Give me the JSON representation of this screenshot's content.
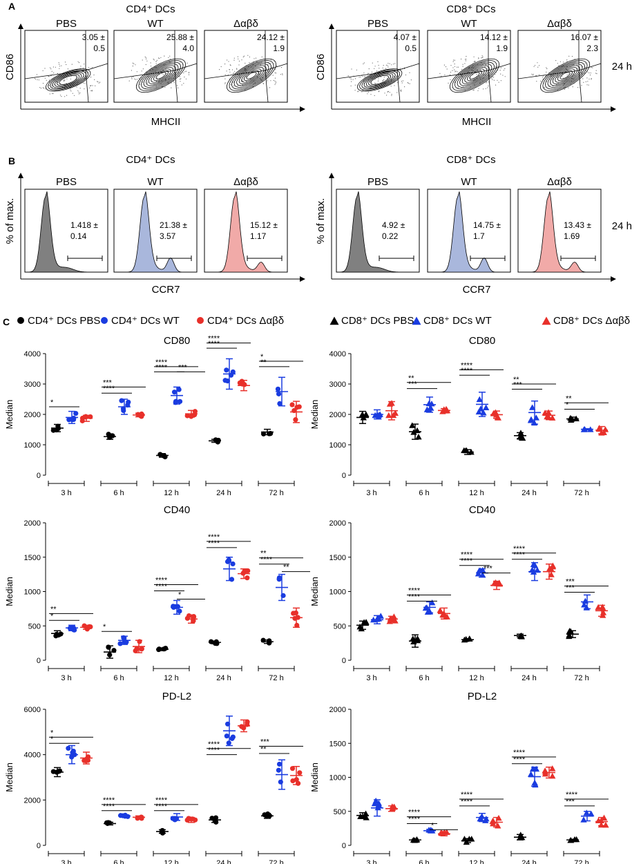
{
  "figure": {
    "panel_labels": [
      "A",
      "B",
      "C"
    ],
    "timepoint": "24 h",
    "groups": [
      "PBS",
      "WT",
      "Δαβδ"
    ],
    "group_colors": [
      "#000000",
      "#1a3ce0",
      "#e8302a"
    ],
    "fill_colors": [
      "#808080",
      "#a9b7dc",
      "#f1aaa8"
    ]
  },
  "panel_a": [
    {
      "title": "CD4⁺ DCs",
      "ylabel": "CD86",
      "xlabel": "MHCII",
      "stats": [
        [
          "3.05 ±",
          "0.5"
        ],
        [
          "25.88 ±",
          "4.0"
        ],
        [
          "24.12 ±",
          "1.9"
        ]
      ]
    },
    {
      "title": "CD8⁺ DCs",
      "ylabel": "CD86",
      "xlabel": "MHCII",
      "stats": [
        [
          "4.07 ±",
          "0.5"
        ],
        [
          "14.12 ±",
          "1.9"
        ],
        [
          "16.07 ±",
          "2.3"
        ]
      ]
    }
  ],
  "panel_b": [
    {
      "title": "CD4⁺ DCs",
      "ylabel": "% of max.",
      "xlabel": "CCR7",
      "stats": [
        [
          "1.418 ±",
          "0.14"
        ],
        [
          "21.38 ±",
          "3.57"
        ],
        [
          "15.12 ±",
          "1.17"
        ]
      ]
    },
    {
      "title": "CD8⁺ DCs",
      "ylabel": "% of max.",
      "xlabel": "CCR7",
      "stats": [
        [
          "4.92 ±",
          "0.22"
        ],
        [
          "14.75 ±",
          "1.7"
        ],
        [
          "13.43 ±",
          "1.69"
        ]
      ]
    }
  ],
  "legend_c": {
    "left": [
      "CD4⁺ DCs PBS",
      "CD4⁺ DCs WT",
      "CD4⁺ DCs Δαβδ"
    ],
    "right": [
      "CD8⁺ DCs PBS",
      "CD8⁺ DCs WT",
      "CD8⁺ DCs Δαβδ"
    ]
  },
  "chart_data": [
    {
      "type": "scatter",
      "title": "CD80",
      "ylabel": "Median",
      "marker": "circle",
      "ylim": [
        0,
        4000
      ],
      "yticks": [
        0,
        1000,
        2000,
        3000,
        4000
      ],
      "categories": [
        "3 h",
        "6 h",
        "12 h",
        "24 h",
        "72 h"
      ],
      "means": [
        [
          1550,
          1270,
          650,
          1130,
          1420
        ],
        [
          1900,
          2250,
          2620,
          3330,
          2750
        ],
        [
          1870,
          1980,
          2020,
          2950,
          2080
        ]
      ],
      "sds": [
        [
          120,
          90,
          60,
          50,
          90
        ],
        [
          200,
          250,
          280,
          500,
          470
        ],
        [
          100,
          60,
          110,
          170,
          350
        ]
      ],
      "sig": [
        {
          "labels": [
            "*"
          ],
          "tops": [
            2250
          ]
        },
        {
          "labels": [
            "***",
            "****"
          ],
          "tops": [
            2900,
            2700
          ]
        },
        {
          "labels": [
            "****",
            "****",
            "***"
          ],
          "tops": [
            3570,
            3400,
            3400
          ]
        },
        {
          "labels": [
            "****",
            "****"
          ],
          "tops": [
            4350,
            4180
          ]
        },
        {
          "labels": [
            "*",
            "**"
          ],
          "tops": [
            3750,
            3570
          ]
        }
      ]
    },
    {
      "type": "scatter",
      "title": "CD80",
      "ylabel": "Median",
      "marker": "triangle",
      "ylim": [
        0,
        4000
      ],
      "yticks": [
        0,
        1000,
        2000,
        3000,
        4000
      ],
      "categories": [
        "3 h",
        "6 h",
        "12 h",
        "24 h",
        "72 h"
      ],
      "means": [
        [
          1900,
          1430,
          760,
          1300,
          1850
        ],
        [
          2000,
          2320,
          2330,
          2060,
          1510
        ],
        [
          2120,
          2130,
          1990,
          1970,
          1480
        ]
      ],
      "sds": [
        [
          200,
          250,
          80,
          100,
          60
        ],
        [
          150,
          250,
          400,
          380,
          20
        ],
        [
          300,
          60,
          120,
          140,
          120
        ]
      ],
      "sig": [
        {
          "labels": [],
          "tops": []
        },
        {
          "labels": [
            "**",
            "***"
          ],
          "tops": [
            3050,
            2850
          ]
        },
        {
          "labels": [
            "****",
            "****"
          ],
          "tops": [
            3470,
            3290
          ]
        },
        {
          "labels": [
            "**",
            "***"
          ],
          "tops": [
            3000,
            2830
          ]
        },
        {
          "labels": [
            "**",
            "*"
          ],
          "tops": [
            2380,
            2170
          ]
        }
      ]
    },
    {
      "type": "scatter",
      "title": "CD40",
      "ylabel": "Median",
      "marker": "circle",
      "ylim": [
        0,
        2000
      ],
      "yticks": [
        0,
        500,
        1000,
        1500,
        2000
      ],
      "categories": [
        "3 h",
        "6 h",
        "12 h",
        "24 h",
        "72 h"
      ],
      "means": [
        [
          390,
          120,
          160,
          260,
          270
        ],
        [
          470,
          290,
          770,
          1330,
          1060
        ],
        [
          480,
          200,
          600,
          1260,
          620
        ]
      ],
      "sds": [
        [
          40,
          90,
          20,
          20,
          25
        ],
        [
          40,
          60,
          100,
          170,
          190
        ],
        [
          30,
          90,
          60,
          70,
          140
        ]
      ],
      "sig": [
        {
          "labels": [
            "**",
            "*"
          ],
          "tops": [
            680,
            580
          ]
        },
        {
          "labels": [
            "*"
          ],
          "tops": [
            420
          ]
        },
        {
          "labels": [
            "****",
            "****",
            "*"
          ],
          "tops": [
            1100,
            1010,
            890
          ]
        },
        {
          "labels": [
            "****",
            "****"
          ],
          "tops": [
            1730,
            1640
          ]
        },
        {
          "labels": [
            "**",
            "****",
            "**"
          ],
          "tops": [
            1490,
            1400,
            1290
          ]
        }
      ]
    },
    {
      "type": "scatter",
      "title": "CD40",
      "ylabel": "Median",
      "marker": "triangle",
      "ylim": [
        0,
        2000
      ],
      "yticks": [
        0,
        500,
        1000,
        1500,
        2000
      ],
      "categories": [
        "3 h",
        "6 h",
        "12 h",
        "24 h",
        "72 h"
      ],
      "means": [
        [
          510,
          280,
          300,
          360,
          380
        ],
        [
          590,
          770,
          1270,
          1290,
          850
        ],
        [
          600,
          680,
          1090,
          1290,
          720
        ]
      ],
      "sds": [
        [
          60,
          90,
          15,
          20,
          50
        ],
        [
          60,
          80,
          60,
          130,
          100
        ],
        [
          40,
          80,
          60,
          110,
          80
        ]
      ],
      "sig": [
        {
          "labels": [],
          "tops": []
        },
        {
          "labels": [
            "****",
            "****"
          ],
          "tops": [
            950,
            860
          ]
        },
        {
          "labels": [
            "****",
            "****",
            "***"
          ],
          "tops": [
            1470,
            1380,
            1270
          ]
        },
        {
          "labels": [
            "****",
            "****"
          ],
          "tops": [
            1560,
            1470
          ]
        },
        {
          "labels": [
            "***",
            "***"
          ],
          "tops": [
            1080,
            990
          ]
        }
      ]
    },
    {
      "type": "scatter",
      "title": "PD-L2",
      "ylabel": "Median",
      "marker": "circle",
      "ylim": [
        0,
        6000
      ],
      "yticks": [
        0,
        2000,
        4000,
        6000
      ],
      "categories": [
        "3 h",
        "6 h",
        "12 h",
        "24 h",
        "72 h"
      ],
      "means": [
        [
          3230,
          960,
          610,
          1120,
          1300
        ],
        [
          4000,
          1300,
          1250,
          5050,
          3120
        ],
        [
          3850,
          1240,
          1120,
          5270,
          3080
        ]
      ],
      "sds": [
        [
          200,
          60,
          80,
          110,
          110
        ],
        [
          400,
          40,
          150,
          650,
          650
        ],
        [
          260,
          60,
          110,
          260,
          400
        ]
      ],
      "sig": [
        {
          "labels": [
            "*",
            "*"
          ],
          "tops": [
            4770,
            4500
          ]
        },
        {
          "labels": [
            "****",
            "****"
          ],
          "tops": [
            1800,
            1530
          ]
        },
        {
          "labels": [
            "****",
            "****"
          ],
          "tops": [
            1800,
            1530
          ]
        },
        {
          "labels": [
            "****",
            "****"
          ],
          "tops": [
            4270,
            4000
          ]
        },
        {
          "labels": [
            "***",
            "**"
          ],
          "tops": [
            4370,
            4050
          ]
        }
      ]
    },
    {
      "type": "scatter",
      "title": "PD-L2",
      "ylabel": "Median",
      "marker": "triangle",
      "ylim": [
        0,
        2000
      ],
      "yticks": [
        0,
        500,
        1000,
        1500,
        2000
      ],
      "categories": [
        "3 h",
        "6 h",
        "12 h",
        "24 h",
        "72 h"
      ],
      "means": [
        [
          440,
          80,
          70,
          120,
          80
        ],
        [
          550,
          215,
          410,
          1010,
          430
        ],
        [
          540,
          170,
          340,
          1070,
          350
        ]
      ],
      "sds": [
        [
          40,
          10,
          30,
          40,
          10
        ],
        [
          120,
          20,
          60,
          140,
          70
        ],
        [
          40,
          30,
          70,
          80,
          60
        ]
      ],
      "sig": [
        {
          "labels": [],
          "tops": []
        },
        {
          "labels": [
            "****",
            "****",
            "*"
          ],
          "tops": [
            420,
            320,
            230
          ]
        },
        {
          "labels": [
            "****",
            "****"
          ],
          "tops": [
            680,
            580
          ]
        },
        {
          "labels": [
            "****",
            "****"
          ],
          "tops": [
            1300,
            1200
          ]
        },
        {
          "labels": [
            "****",
            "***"
          ],
          "tops": [
            680,
            580
          ]
        }
      ]
    }
  ]
}
